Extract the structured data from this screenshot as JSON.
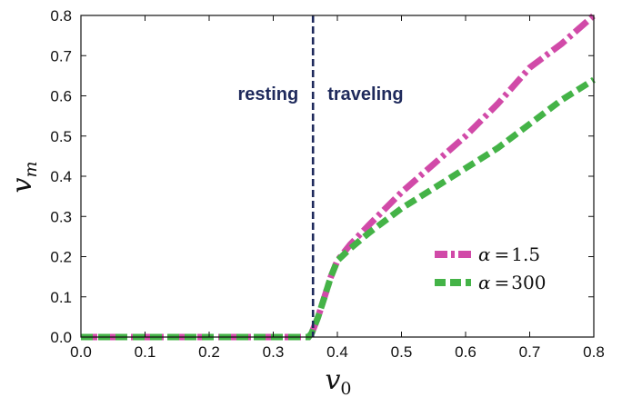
{
  "chart_data": {
    "type": "line",
    "xlabel_main": "v",
    "xlabel_sub": "0",
    "ylabel_main": "v",
    "ylabel_sub": "m",
    "xlim": [
      0.0,
      0.8
    ],
    "ylim": [
      0.0,
      0.8
    ],
    "xticks": [
      "0.0",
      "0.1",
      "0.2",
      "0.3",
      "0.4",
      "0.5",
      "0.6",
      "0.7",
      "0.8"
    ],
    "yticks": [
      "0.0",
      "0.1",
      "0.2",
      "0.3",
      "0.4",
      "0.5",
      "0.6",
      "0.7",
      "0.8"
    ],
    "grid": false,
    "legend_position": "lower-right",
    "threshold_x": 0.362,
    "threshold_color": "#1f2a5c",
    "regions": {
      "left": "resting",
      "right": "traveling"
    },
    "series": [
      {
        "name": "α = 1.5",
        "color": "#d14aa8",
        "style": "dash-dot",
        "x": [
          0.0,
          0.1,
          0.2,
          0.3,
          0.355,
          0.36,
          0.37,
          0.38,
          0.39,
          0.4,
          0.42,
          0.45,
          0.5,
          0.55,
          0.6,
          0.65,
          0.7,
          0.75,
          0.8
        ],
        "y": [
          0.0,
          0.0,
          0.0,
          0.0,
          0.0,
          0.01,
          0.05,
          0.1,
          0.15,
          0.19,
          0.23,
          0.28,
          0.36,
          0.43,
          0.5,
          0.58,
          0.67,
          0.73,
          0.8
        ]
      },
      {
        "name": "α = 300",
        "color": "#44b347",
        "style": "dashed",
        "x": [
          0.0,
          0.1,
          0.2,
          0.3,
          0.355,
          0.36,
          0.37,
          0.38,
          0.39,
          0.4,
          0.42,
          0.45,
          0.5,
          0.55,
          0.6,
          0.65,
          0.7,
          0.75,
          0.8
        ],
        "y": [
          0.0,
          0.0,
          0.0,
          0.0,
          0.0,
          0.01,
          0.05,
          0.1,
          0.15,
          0.19,
          0.22,
          0.26,
          0.32,
          0.37,
          0.42,
          0.47,
          0.53,
          0.59,
          0.64
        ]
      }
    ],
    "legend": [
      {
        "symbol": "α",
        "op": "=",
        "value": "1.5"
      },
      {
        "symbol": "α",
        "op": "=",
        "value": "300"
      }
    ]
  }
}
